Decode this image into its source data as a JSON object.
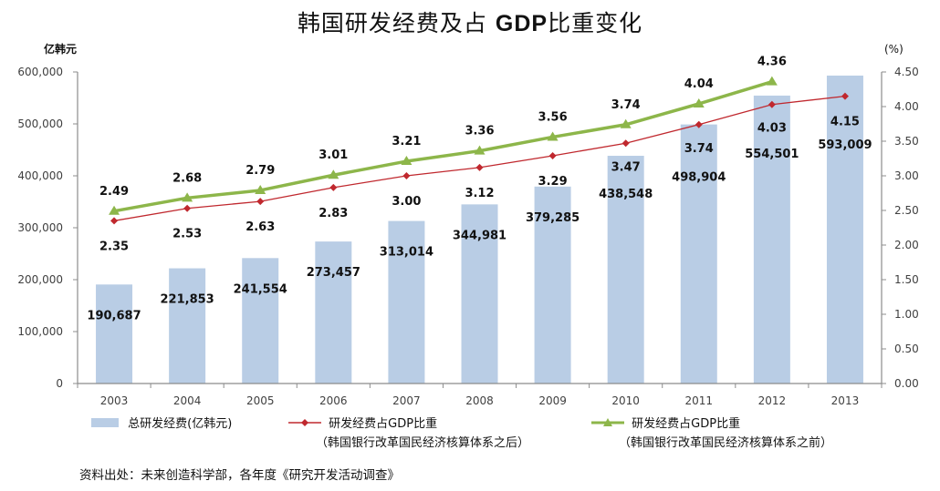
{
  "chart_data": {
    "type": "bar+line",
    "title": "韩国研发经费及占 GDP比重变化",
    "title_parts": [
      "韩国研发经费及占 ",
      "GDP",
      "比重变化"
    ],
    "categories": [
      "2003",
      "2004",
      "2005",
      "2006",
      "2007",
      "2008",
      "2009",
      "2010",
      "2011",
      "2012",
      "2013"
    ],
    "left_axis": {
      "label": "亿韩元",
      "ylim": [
        0,
        600000
      ],
      "ticks": [
        "0",
        "100,000",
        "200,000",
        "300,000",
        "400,000",
        "500,000",
        "600,000"
      ],
      "tick_values": [
        0,
        100000,
        200000,
        300000,
        400000,
        500000,
        600000
      ]
    },
    "right_axis": {
      "label": "(%)",
      "ylim": [
        0,
        4.5
      ],
      "ticks": [
        "0.00",
        "0.50",
        "1.00",
        "1.50",
        "2.00",
        "2.50",
        "3.00",
        "3.50",
        "4.00",
        "4.50"
      ],
      "tick_values": [
        0,
        0.5,
        1,
        1.5,
        2,
        2.5,
        3,
        3.5,
        4,
        4.5
      ]
    },
    "series": [
      {
        "name": "总研发经费(亿韩元)",
        "type": "bar",
        "axis": "left",
        "color": "#B9CDE5",
        "values": [
          190687,
          221853,
          241554,
          273457,
          313014,
          344981,
          379285,
          438548,
          498904,
          554501,
          593009
        ],
        "labels": [
          "190,687",
          "221,853",
          "241,554",
          "273,457",
          "313,014",
          "344,981",
          "379,285",
          "438,548",
          "498,904",
          "554,501",
          "593,009"
        ]
      },
      {
        "name": "研发经费占GDP比重",
        "name_sub": "（韩国银行改革国民经济核算体系之后）",
        "type": "line",
        "marker": "diamond",
        "axis": "right",
        "color": "#C0282E",
        "values": [
          2.35,
          2.53,
          2.63,
          2.83,
          3.0,
          3.12,
          3.29,
          3.47,
          3.74,
          4.03,
          4.15
        ],
        "labels": [
          "2.35",
          "2.53",
          "2.63",
          "2.83",
          "3.00",
          "3.12",
          "3.29",
          "3.47",
          "3.74",
          "4.03",
          "4.15"
        ]
      },
      {
        "name": "研发经费占GDP比重",
        "name_sub": "（韩国银行改革国民经济核算体系之前）",
        "type": "line",
        "marker": "triangle",
        "axis": "right",
        "color": "#8DB64A",
        "values": [
          2.49,
          2.68,
          2.79,
          3.01,
          3.21,
          3.36,
          3.56,
          3.74,
          4.04,
          4.36,
          null
        ],
        "labels": [
          "2.49",
          "2.68",
          "2.79",
          "3.01",
          "3.21",
          "3.36",
          "3.56",
          "3.74",
          "4.04",
          "4.36",
          ""
        ]
      }
    ],
    "grid": false,
    "legend_position": "bottom"
  },
  "source_note": "资料出处：未来创造科学部，各年度《研究开发活动调查》"
}
